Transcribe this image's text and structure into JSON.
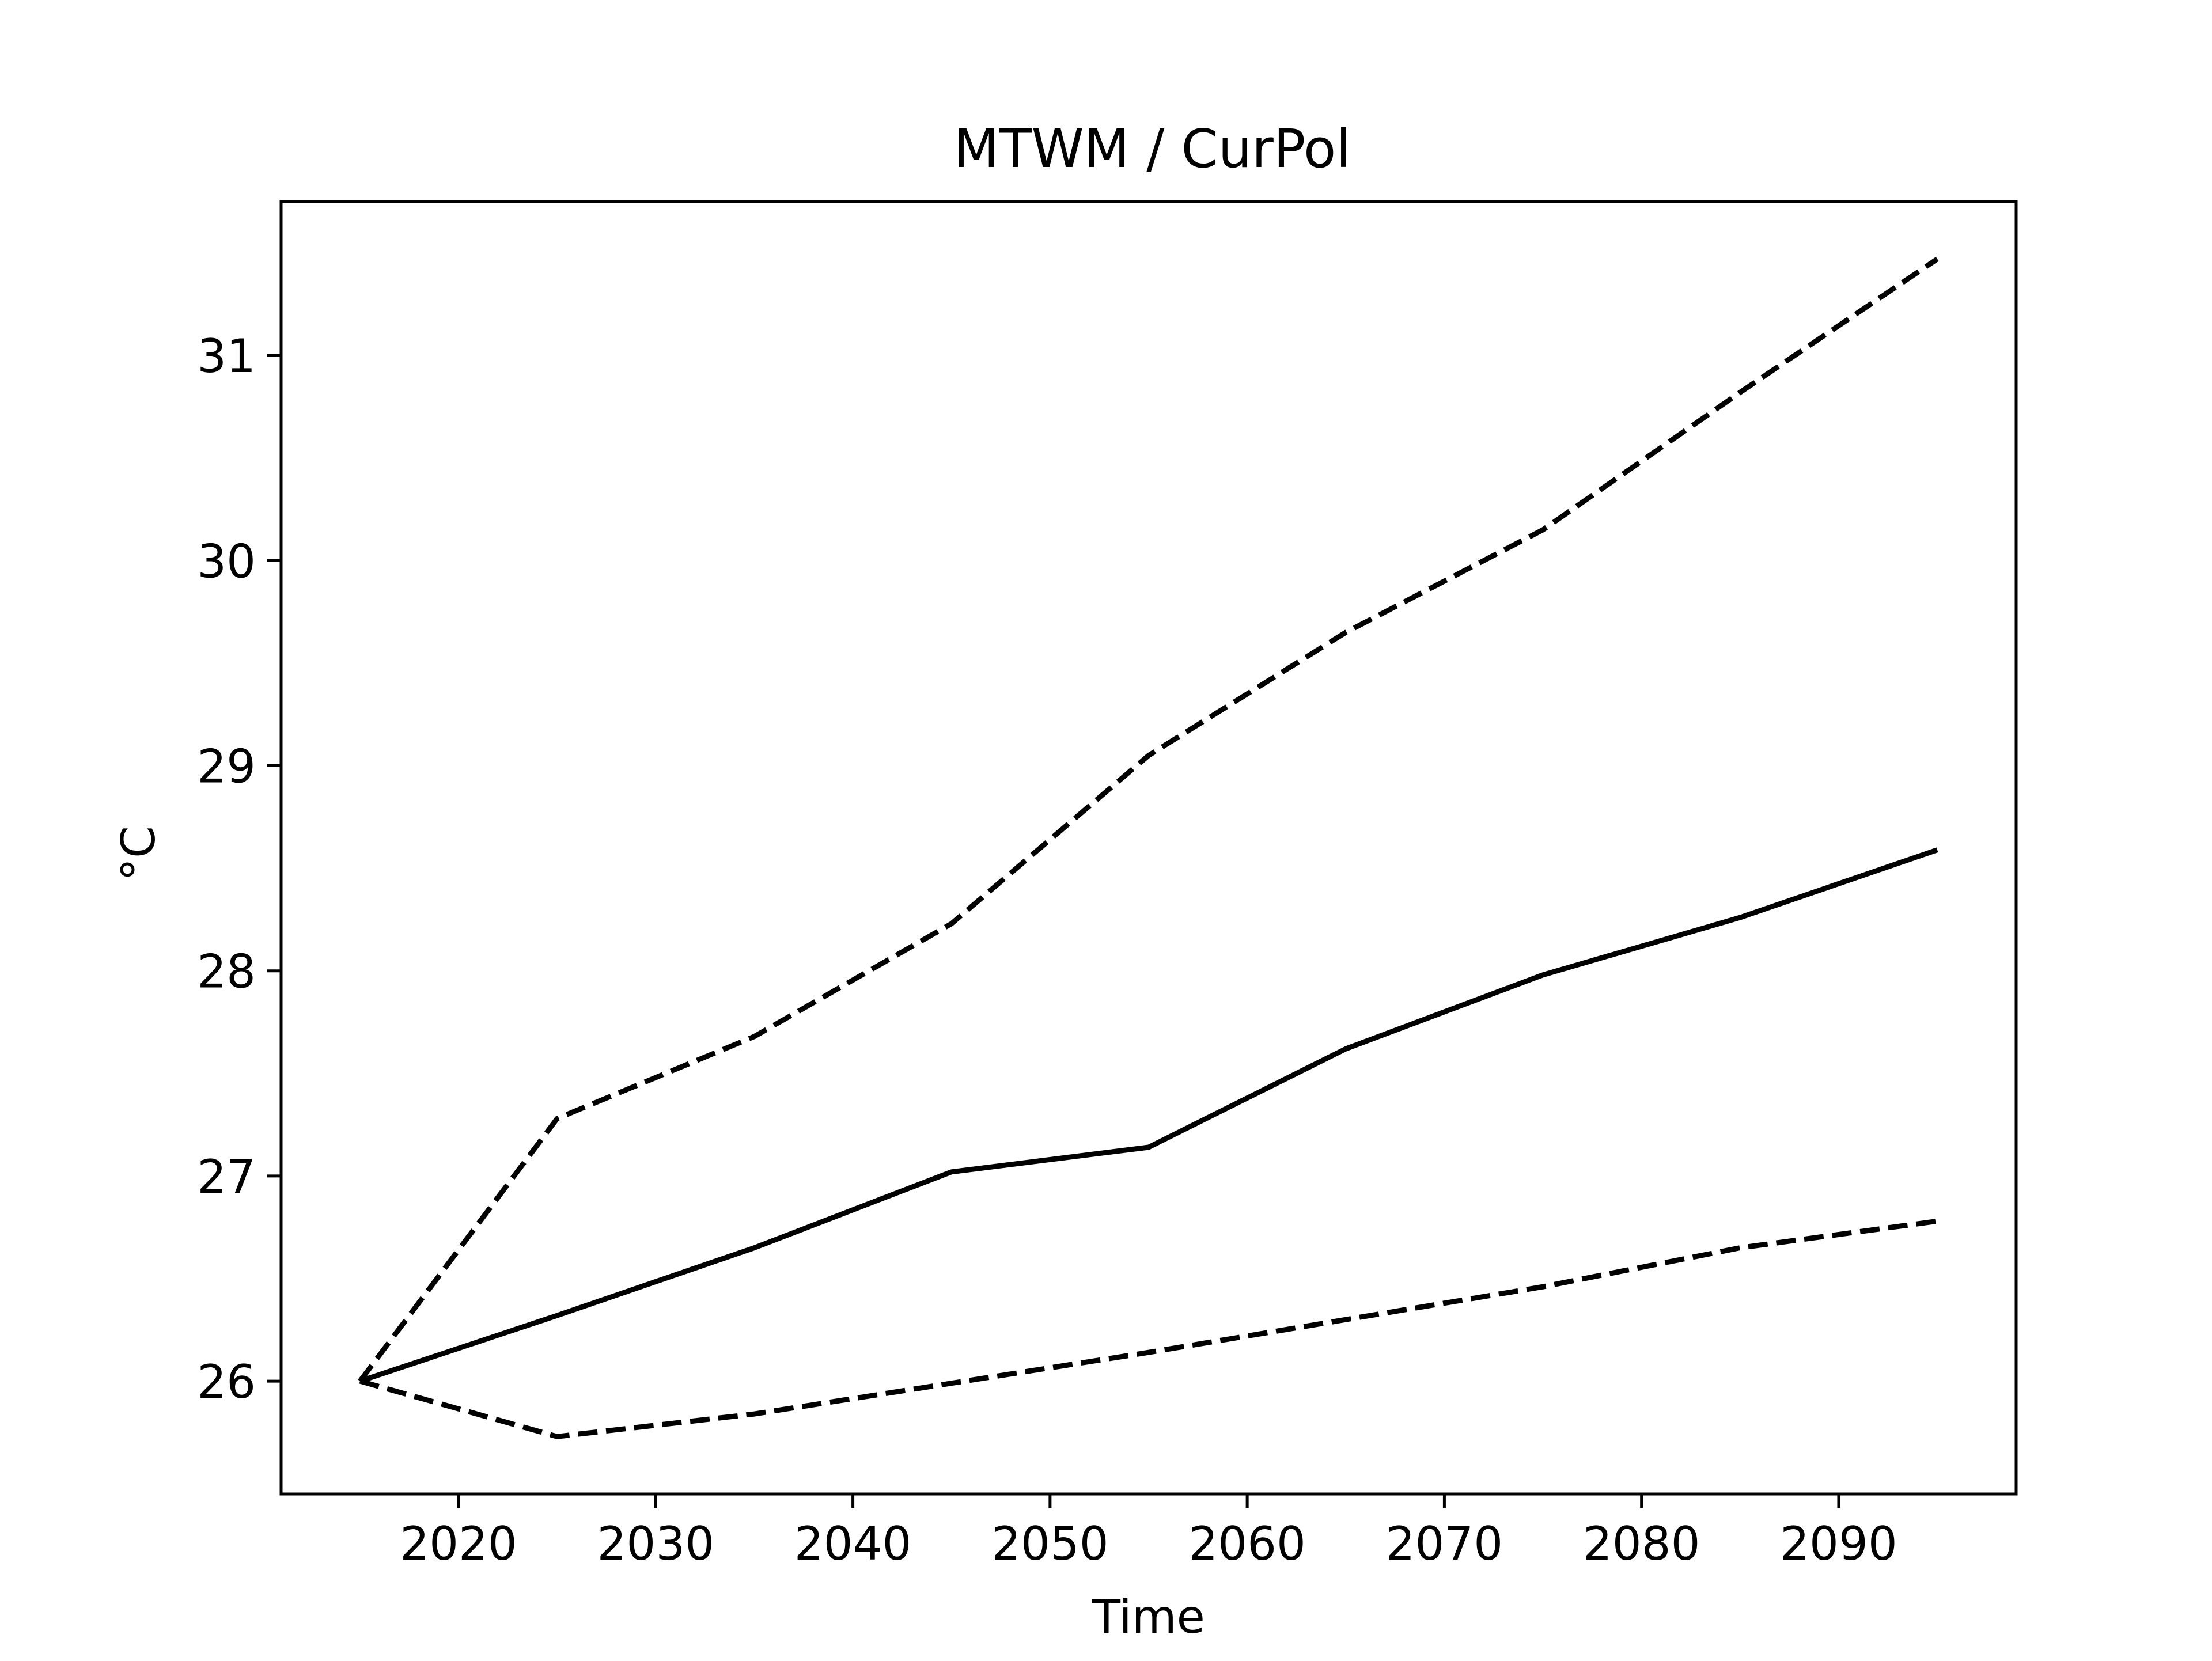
{
  "chart_data": {
    "type": "line",
    "title": "MTWM / CurPol",
    "xlabel": "Time",
    "ylabel": "°C",
    "xlim": [
      2011,
      2099
    ],
    "ylim": [
      25.45,
      31.75
    ],
    "xticks": [
      2020,
      2030,
      2040,
      2050,
      2060,
      2070,
      2080,
      2090
    ],
    "yticks": [
      26,
      27,
      28,
      29,
      30,
      31
    ],
    "x": [
      2015,
      2025,
      2035,
      2045,
      2055,
      2065,
      2075,
      2085,
      2095
    ],
    "grid": false,
    "series": [
      {
        "style": "solid",
        "color": "#000000",
        "values": [
          26.0,
          26.32,
          26.65,
          27.02,
          27.14,
          27.62,
          27.98,
          28.26,
          28.59
        ]
      },
      {
        "style": "dashed",
        "color": "#000000",
        "values": [
          26.0,
          27.28,
          27.68,
          28.23,
          29.05,
          29.65,
          30.15,
          30.82,
          31.47
        ]
      },
      {
        "style": "dashed",
        "color": "#000000",
        "values": [
          26.0,
          25.73,
          25.84,
          25.99,
          26.14,
          26.3,
          26.46,
          26.65,
          26.78
        ]
      }
    ]
  }
}
